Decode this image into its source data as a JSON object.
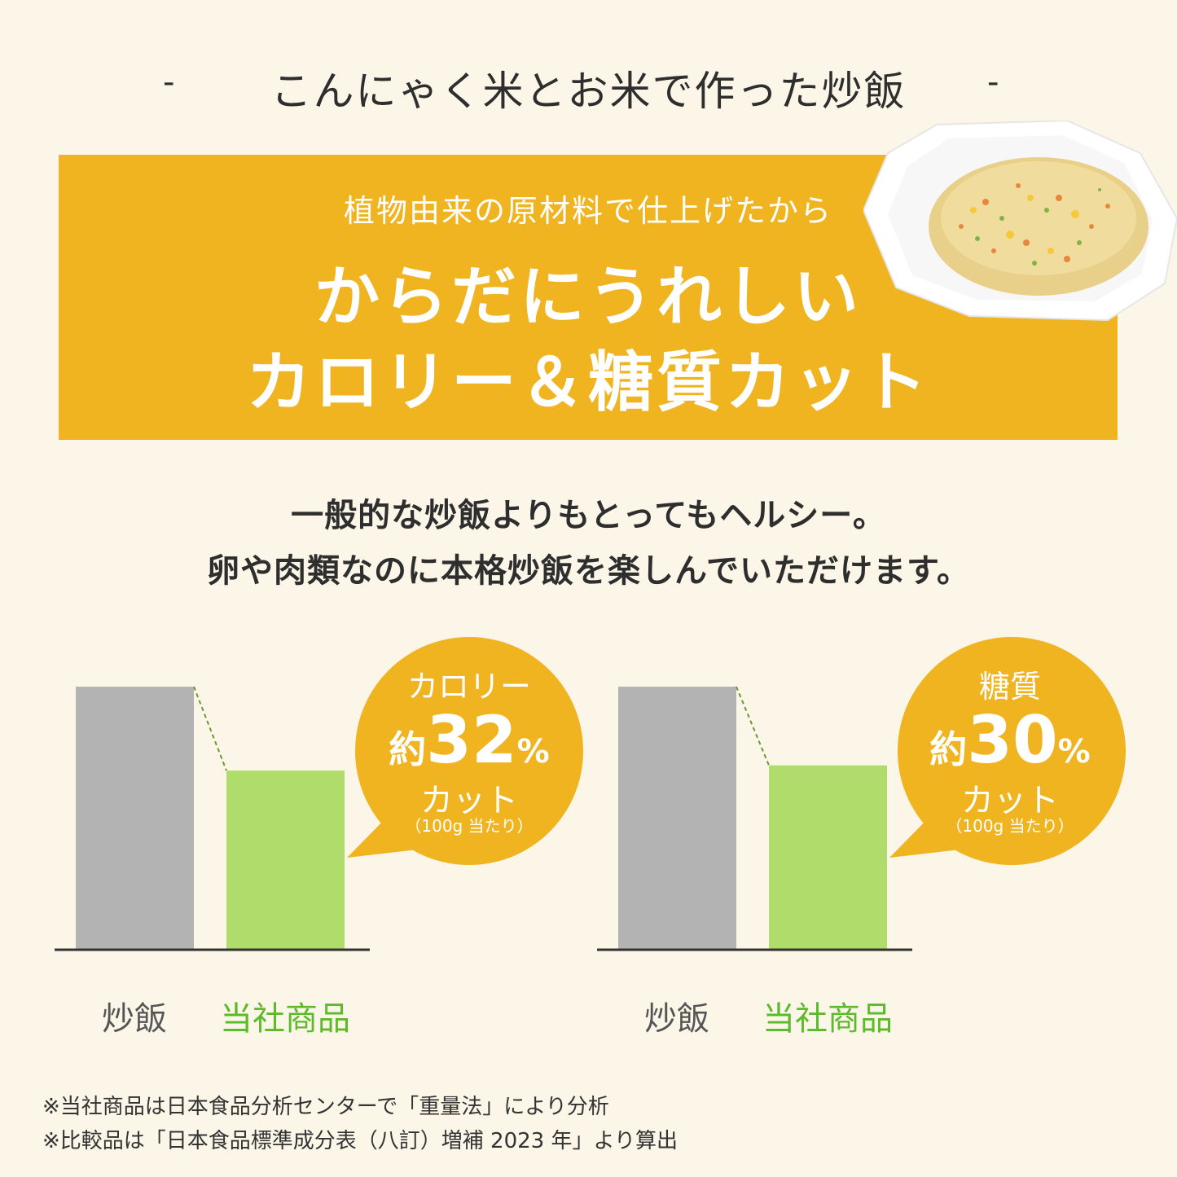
{
  "header": {
    "title": "こんにゃく米とお米で作った炒飯",
    "dash_left": "-",
    "dash_right": "-"
  },
  "banner": {
    "subtitle": "植物由来の原材料で仕上げたから",
    "headline_line1": "からだにうれしい",
    "headline_line2": "カロリー＆糖質カット",
    "color": "#efb41f"
  },
  "copy": {
    "line1": "一般的な炒飯よりもとってもヘルシー。",
    "line2": "卵や肉類なのに本格炒飯を楽しんでいただけます。"
  },
  "colors": {
    "background": "#fcf6e9",
    "gray_bar": "#b3b3b3",
    "green_bar": "#afdc6a",
    "green_text": "#5dbb2b",
    "bubble": "#efb41f"
  },
  "chart_data": [
    {
      "type": "bar",
      "categories": [
        "炒飯",
        "当社商品"
      ],
      "values": [
        100,
        68
      ],
      "bubble": {
        "label": "カロリー",
        "prefix": "約",
        "value": "32",
        "unit": "%",
        "suffix": "カット",
        "note": "（100g 当たり）"
      }
    },
    {
      "type": "bar",
      "categories": [
        "炒飯",
        "当社商品"
      ],
      "values": [
        100,
        70
      ],
      "bubble": {
        "label": "糖質",
        "prefix": "約",
        "value": "30",
        "unit": "%",
        "suffix": "カット",
        "note": "（100g 当たり）"
      }
    }
  ],
  "notes": [
    "※当社商品は日本食品分析センターで「重量法」により分析",
    "※比較品は「日本食品標準成分表（八訂）増補 2023 年」より算出"
  ]
}
